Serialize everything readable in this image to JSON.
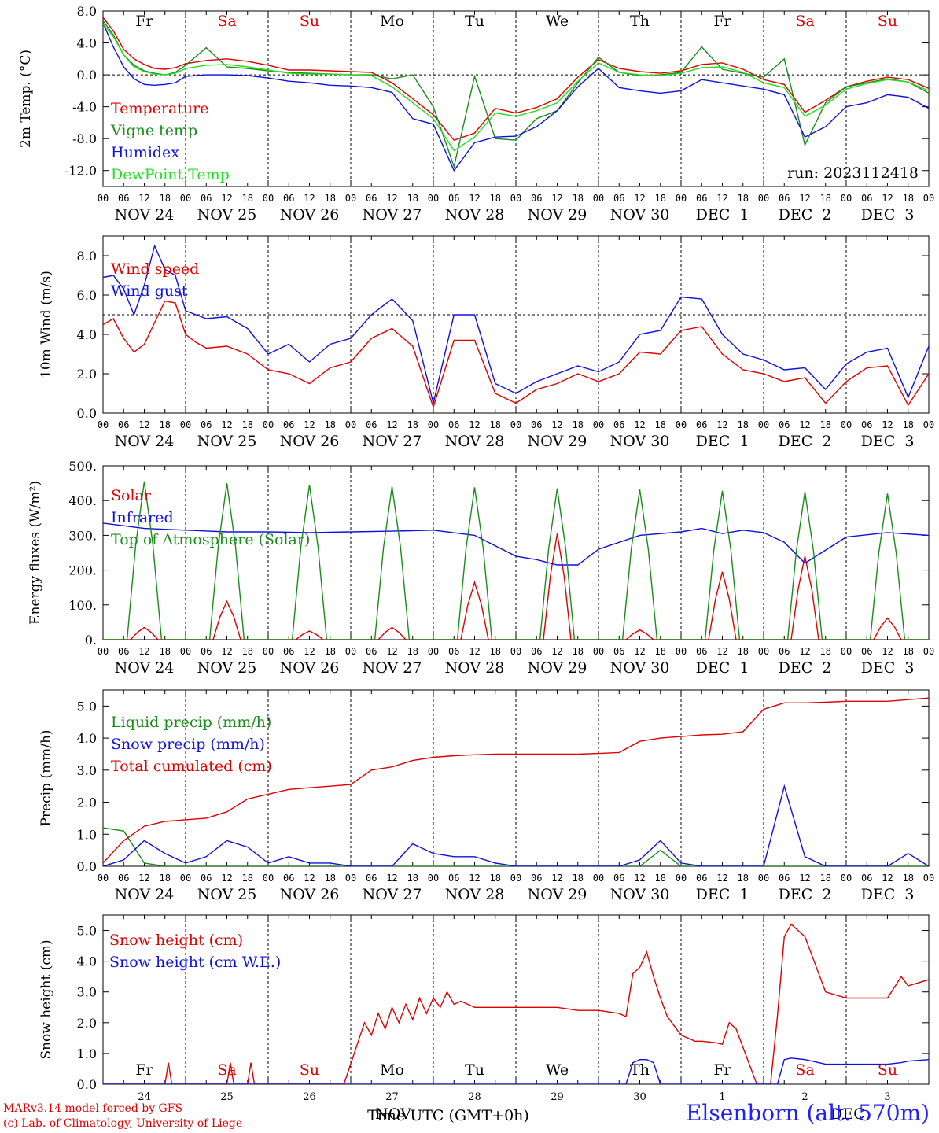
{
  "footer": {
    "model": "MARv3.14 model forced by GFS",
    "lab": "(c) Lab. of Climatology, University of Liege",
    "station": "Elsenborn (alt. 570m)",
    "xlabel": "Time UTC (GMT+0h)",
    "month_label": "NOV",
    "month_label_2": "DEC"
  },
  "run": "run: 2023112418",
  "days": {
    "weekdays": [
      "Fr",
      "Sa",
      "Su",
      "Mo",
      "Tu",
      "We",
      "Th",
      "Fr",
      "Sa",
      "Su"
    ],
    "weekday_colors": [
      "#000000",
      "#e00000",
      "#e00000",
      "#000000",
      "#000000",
      "#000000",
      "#000000",
      "#000000",
      "#e00000",
      "#e00000"
    ],
    "dates": [
      "NOV 24",
      "NOV 25",
      "NOV 26",
      "NOV 27",
      "NOV 28",
      "NOV 29",
      "NOV 30",
      "DEC  1",
      "DEC  2",
      "DEC  3"
    ],
    "day_numbers": [
      "24",
      "25",
      "26",
      "27",
      "28",
      "29",
      "30",
      "1",
      "2",
      "3"
    ],
    "hour_ticks": [
      "00",
      "06",
      "12",
      "18"
    ],
    "hour_end": "00"
  },
  "colors": {
    "red": "#e00000",
    "green": "#1a8c1a",
    "blue": "#1010e0",
    "lightgreen": "#20e020"
  },
  "chart_data": [
    {
      "type": "line",
      "ylabel": "2m Temp. (°C)",
      "ylim": [
        -14,
        8
      ],
      "yticks": [
        "8.0",
        "4.0",
        "0.0",
        "-4.0",
        "-8.0",
        "-12.0"
      ],
      "ytick_values": [
        8,
        4,
        0,
        -4,
        -8,
        -12
      ],
      "ref_line": 0,
      "x_hours": [
        0,
        3,
        6,
        9,
        12,
        15,
        18,
        21,
        24,
        30,
        36,
        42,
        48,
        54,
        60,
        66,
        72,
        78,
        84,
        90,
        96,
        102,
        108,
        114,
        120,
        126,
        132,
        138,
        144,
        150,
        156,
        162,
        168,
        174,
        180,
        186,
        192,
        198,
        204,
        210,
        216,
        222,
        228,
        234,
        240
      ],
      "series": [
        {
          "name": "Temperature",
          "color": "#e00000",
          "values": [
            7.2,
            5.5,
            3.2,
            2.0,
            1.3,
            0.8,
            0.7,
            0.9,
            1.4,
            1.8,
            2.0,
            1.7,
            1.2,
            0.6,
            0.6,
            0.5,
            0.4,
            0.3,
            -1.0,
            -3.0,
            -5.0,
            -8.2,
            -7.3,
            -4.2,
            -4.8,
            -4.1,
            -3.0,
            -0.3,
            1.9,
            0.8,
            0.4,
            0.2,
            0.5,
            1.3,
            1.5,
            0.7,
            -0.6,
            -1.2,
            -4.7,
            -3.2,
            -1.5,
            -0.8,
            -0.3,
            -0.6,
            -1.7
          ]
        },
        {
          "name": "Vigne temp",
          "color": "#1a8c1a",
          "values": [
            6.8,
            5.0,
            2.5,
            1.2,
            0.5,
            0.2,
            0.0,
            0.3,
            1.2,
            3.4,
            1.0,
            0.8,
            0.5,
            0.3,
            0.2,
            0.1,
            0.0,
            0.0,
            -0.5,
            0.0,
            -4.0,
            -11.5,
            -0.2,
            -8.0,
            -8.2,
            -5.5,
            -4.5,
            -1.0,
            2.2,
            0.3,
            -0.1,
            0.0,
            0.3,
            3.5,
            0.7,
            0.2,
            -0.3,
            2.0,
            -8.8,
            -3.5,
            -1.5,
            -1.0,
            -0.5,
            -0.9,
            -2.3
          ]
        },
        {
          "name": "Humidex",
          "color": "#1010e0",
          "values": [
            6.5,
            3.5,
            1.0,
            -0.5,
            -1.2,
            -1.3,
            -1.2,
            -1.0,
            -0.2,
            0.0,
            0.0,
            -0.1,
            -0.4,
            -0.8,
            -1.0,
            -1.3,
            -1.4,
            -1.6,
            -2.2,
            -5.5,
            -6.2,
            -12.0,
            -8.5,
            -7.8,
            -7.7,
            -6.5,
            -4.5,
            -1.5,
            0.8,
            -1.6,
            -2.0,
            -2.3,
            -2.0,
            -0.6,
            -1.0,
            -1.4,
            -1.8,
            -2.5,
            -7.8,
            -6.5,
            -4.0,
            -3.5,
            -2.5,
            -2.8,
            -4.2
          ]
        },
        {
          "name": "DewPoint Temp",
          "color": "#20e020",
          "values": [
            6.4,
            4.8,
            2.5,
            1.0,
            0.4,
            0.1,
            0.0,
            0.2,
            0.8,
            1.2,
            1.3,
            1.0,
            0.6,
            0.2,
            0.1,
            0.1,
            0.0,
            -0.1,
            -1.5,
            -3.5,
            -5.5,
            -9.5,
            -7.8,
            -4.8,
            -5.2,
            -4.5,
            -3.5,
            -0.8,
            1.5,
            0.3,
            0.0,
            -0.1,
            0.2,
            0.9,
            1.0,
            0.3,
            -1.0,
            -1.6,
            -5.2,
            -3.8,
            -1.8,
            -1.1,
            -0.6,
            -0.9,
            -2.0
          ]
        }
      ]
    },
    {
      "type": "line",
      "ylabel": "10m Wind (m/s)",
      "ylim": [
        0,
        9
      ],
      "yticks": [
        "8.0",
        "6.0",
        "4.0",
        "2.0",
        "0.0"
      ],
      "ytick_values": [
        8,
        6,
        4,
        2,
        0
      ],
      "ref_line": 5,
      "x_hours": [
        0,
        3,
        6,
        9,
        12,
        15,
        18,
        21,
        24,
        27,
        30,
        36,
        42,
        48,
        54,
        60,
        66,
        72,
        78,
        84,
        90,
        96,
        102,
        108,
        114,
        120,
        126,
        132,
        138,
        144,
        150,
        156,
        162,
        168,
        174,
        180,
        186,
        192,
        198,
        204,
        210,
        216,
        222,
        228,
        234,
        240
      ],
      "series": [
        {
          "name": "Wind speed",
          "color": "#e00000",
          "values": [
            4.5,
            4.8,
            3.8,
            3.1,
            3.5,
            4.6,
            5.7,
            5.6,
            4.0,
            3.6,
            3.3,
            3.4,
            3.0,
            2.2,
            2.0,
            1.5,
            2.3,
            2.6,
            3.8,
            4.3,
            3.4,
            0.3,
            3.7,
            3.7,
            1.0,
            0.5,
            1.2,
            1.5,
            2.0,
            1.6,
            2.0,
            3.1,
            3.0,
            4.2,
            4.4,
            3.0,
            2.2,
            2.0,
            1.6,
            1.8,
            0.5,
            1.6,
            2.3,
            2.4,
            0.4,
            2.0
          ]
        },
        {
          "name": "Wind gust",
          "color": "#1010e0",
          "values": [
            6.9,
            7.0,
            6.3,
            5.0,
            6.5,
            8.5,
            7.3,
            7.0,
            5.2,
            5.0,
            4.8,
            4.9,
            4.3,
            3.0,
            3.5,
            2.6,
            3.5,
            3.8,
            5.0,
            5.8,
            4.7,
            0.5,
            5.0,
            5.0,
            1.5,
            1.0,
            1.6,
            2.0,
            2.4,
            2.1,
            2.6,
            4.0,
            4.2,
            5.9,
            5.8,
            4.0,
            3.0,
            2.7,
            2.2,
            2.3,
            1.2,
            2.5,
            3.1,
            3.3,
            0.8,
            3.4
          ]
        }
      ]
    },
    {
      "type": "line",
      "ylabel": "Energy fluxes (W/m²)",
      "ylim": [
        0,
        500
      ],
      "yticks": [
        "500.",
        "400.",
        "300.",
        "200.",
        "100.",
        "0."
      ],
      "ytick_values": [
        500,
        400,
        300,
        200,
        100,
        0
      ],
      "ref_line": null,
      "x_hours": [
        0,
        12,
        24,
        36,
        48,
        60,
        72,
        84,
        96,
        108,
        114,
        120,
        126,
        132,
        138,
        144,
        156,
        168,
        174,
        180,
        186,
        192,
        198,
        204,
        216,
        228,
        240
      ],
      "series": [
        {
          "name": "Solar",
          "color": "#e00000",
          "peaks": [
            [
              12,
              35
            ],
            [
              36,
              110
            ],
            [
              60,
              25
            ],
            [
              84,
              35
            ],
            [
              108,
              165
            ],
            [
              132,
              305
            ],
            [
              156,
              28
            ],
            [
              180,
              195
            ],
            [
              204,
              240
            ],
            [
              228,
              62
            ]
          ]
        },
        {
          "name": "Infrared",
          "color": "#1010e0",
          "values": [
            335,
            320,
            315,
            310,
            310,
            308,
            310,
            312,
            315,
            300,
            270,
            240,
            230,
            215,
            215,
            260,
            300,
            310,
            320,
            305,
            315,
            308,
            280,
            220,
            295,
            308,
            300
          ]
        },
        {
          "name": "Top of Atmosphere (Solar)",
          "color": "#1a8c1a",
          "peaks": [
            [
              12,
              455
            ],
            [
              36,
              450
            ],
            [
              60,
              445
            ],
            [
              84,
              440
            ],
            [
              108,
              438
            ],
            [
              132,
              435
            ],
            [
              156,
              432
            ],
            [
              180,
              428
            ],
            [
              204,
              425
            ],
            [
              228,
              420
            ]
          ]
        }
      ]
    },
    {
      "type": "line",
      "ylabel": "Precip (mm/h)",
      "ylim": [
        0,
        5.5
      ],
      "yticks": [
        "5.0",
        "4.0",
        "3.0",
        "2.0",
        "1.0",
        "0.0"
      ],
      "ytick_values": [
        5,
        4,
        3,
        2,
        1,
        0
      ],
      "ref_line": null,
      "x_hours": [
        0,
        6,
        12,
        18,
        24,
        30,
        36,
        42,
        48,
        54,
        60,
        66,
        72,
        78,
        84,
        90,
        96,
        102,
        108,
        114,
        120,
        126,
        132,
        138,
        144,
        150,
        156,
        162,
        168,
        174,
        180,
        186,
        192,
        198,
        204,
        210,
        216,
        222,
        228,
        234,
        240
      ],
      "series": [
        {
          "name": "Liquid precip (mm/h)",
          "color": "#1a8c1a",
          "values": [
            1.2,
            1.1,
            0.1,
            0.0,
            0.0,
            0.0,
            0.0,
            0.0,
            0.0,
            0.0,
            0.0,
            0.0,
            0.0,
            0.0,
            0.0,
            0.0,
            0.0,
            0.0,
            0.0,
            0.0,
            0.0,
            0.0,
            0.0,
            0.0,
            0.0,
            0.0,
            0.0,
            0.5,
            0.0,
            0.0,
            0.0,
            0.0,
            0.0,
            0.0,
            0.0,
            0.0,
            0.0,
            0.0,
            0.0,
            0.0,
            0.0
          ]
        },
        {
          "name": "Snow precip (mm/h)",
          "color": "#1010e0",
          "values": [
            0.0,
            0.2,
            0.8,
            0.4,
            0.1,
            0.3,
            0.8,
            0.6,
            0.1,
            0.3,
            0.1,
            0.1,
            0.0,
            0.0,
            0.0,
            0.7,
            0.4,
            0.3,
            0.3,
            0.1,
            0.0,
            0.0,
            0.0,
            0.0,
            0.0,
            0.0,
            0.2,
            0.8,
            0.1,
            0.0,
            0.0,
            0.0,
            0.0,
            2.5,
            0.3,
            0.0,
            0.0,
            0.0,
            0.0,
            0.4,
            0.0
          ]
        },
        {
          "name": "Total cumulated (cm)",
          "color": "#e00000",
          "values": [
            0.1,
            0.8,
            1.25,
            1.4,
            1.45,
            1.5,
            1.7,
            2.1,
            2.25,
            2.4,
            2.45,
            2.5,
            2.55,
            3.0,
            3.1,
            3.3,
            3.4,
            3.45,
            3.48,
            3.5,
            3.5,
            3.5,
            3.5,
            3.5,
            3.52,
            3.55,
            3.9,
            4.0,
            4.05,
            4.1,
            4.12,
            4.2,
            4.9,
            5.1,
            5.1,
            5.12,
            5.15,
            5.15,
            5.15,
            5.2,
            5.25
          ]
        }
      ]
    },
    {
      "type": "line",
      "ylabel": "Snow height (cm)",
      "ylim": [
        0,
        5.5
      ],
      "yticks": [
        "5.0",
        "4.0",
        "3.0",
        "2.0",
        "1.0",
        "0.0"
      ],
      "ytick_values": [
        5,
        4,
        3,
        2,
        1,
        0
      ],
      "ref_line": null,
      "x_hours": [
        0,
        18,
        19,
        20,
        36,
        37,
        38,
        42,
        43,
        44,
        70,
        76,
        78,
        80,
        82,
        84,
        86,
        88,
        90,
        92,
        94,
        96,
        98,
        100,
        102,
        104,
        106,
        108,
        110,
        114,
        120,
        126,
        132,
        138,
        144,
        150,
        152,
        154,
        156,
        158,
        160,
        162,
        164,
        168,
        170,
        172,
        174,
        178,
        180,
        182,
        184,
        190,
        192,
        194,
        196,
        198,
        200,
        204,
        208,
        210,
        216,
        222,
        228,
        232,
        234,
        240
      ],
      "series": [
        {
          "name": "Snow height (cm)",
          "color": "#e00000",
          "values": [
            0,
            0,
            0.7,
            0,
            0,
            0.7,
            0,
            0,
            0.7,
            0,
            0,
            2.0,
            1.6,
            2.3,
            1.8,
            2.5,
            2.0,
            2.6,
            2.1,
            2.8,
            2.3,
            2.8,
            2.5,
            3.0,
            2.6,
            2.7,
            2.6,
            2.5,
            2.5,
            2.5,
            2.5,
            2.5,
            2.5,
            2.4,
            2.4,
            2.3,
            2.2,
            3.6,
            3.8,
            4.3,
            3.5,
            2.8,
            2.2,
            1.6,
            1.5,
            1.4,
            1.4,
            1.35,
            1.3,
            2.0,
            1.8,
            0,
            0,
            0,
            2.2,
            4.8,
            5.2,
            4.8,
            3.6,
            3.0,
            2.8,
            2.8,
            2.8,
            3.5,
            3.2,
            3.4
          ]
        },
        {
          "name": "Snow height (cm W.E.)",
          "color": "#1010e0",
          "values": [
            0,
            0,
            0,
            0,
            0,
            0,
            0,
            0,
            0,
            0,
            0,
            0,
            0,
            0,
            0,
            0,
            0,
            0,
            0,
            0,
            0,
            0,
            0,
            0,
            0,
            0,
            0,
            0,
            0,
            0,
            0,
            0,
            0,
            0,
            0,
            0,
            0,
            0.7,
            0.8,
            0.8,
            0.7,
            0,
            0,
            0,
            0,
            0,
            0,
            0,
            0,
            0,
            0,
            0,
            0,
            0,
            0,
            0.8,
            0.85,
            0.8,
            0.7,
            0.65,
            0.65,
            0.65,
            0.65,
            0.7,
            0.75,
            0.8
          ]
        }
      ]
    }
  ]
}
